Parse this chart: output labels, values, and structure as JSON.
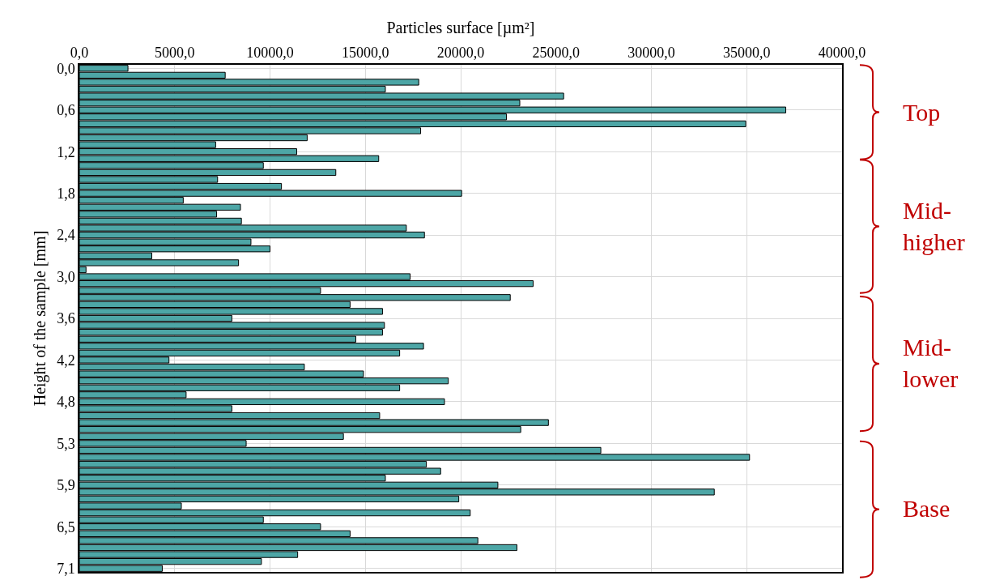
{
  "chart_data": {
    "type": "bar",
    "orientation": "horizontal",
    "xlabel": "Particles surface [µm²]",
    "ylabel": "Height of the sample [mm]",
    "categories": [
      "0,0",
      null,
      null,
      null,
      null,
      null,
      "0,6",
      null,
      null,
      null,
      null,
      null,
      "1,2",
      null,
      null,
      null,
      null,
      null,
      "1,8",
      null,
      null,
      null,
      null,
      null,
      "2,4",
      null,
      null,
      null,
      null,
      null,
      "3,0",
      null,
      null,
      null,
      null,
      null,
      "3,6",
      null,
      null,
      null,
      null,
      null,
      "4,2",
      null,
      null,
      null,
      null,
      null,
      "4,8",
      null,
      null,
      null,
      null,
      null,
      "5,3",
      null,
      null,
      null,
      null,
      null,
      "5,9",
      null,
      null,
      null,
      null,
      null,
      "6,5",
      null,
      null,
      null,
      null,
      null,
      "7,1"
    ],
    "values": [
      2550,
      7650,
      17800,
      16050,
      25400,
      23100,
      37050,
      22400,
      34950,
      17900,
      11950,
      7150,
      11400,
      15700,
      9650,
      13450,
      7250,
      10600,
      20050,
      5450,
      8450,
      7200,
      8500,
      17150,
      18100,
      9000,
      10000,
      3800,
      8350,
      350,
      17350,
      23800,
      12650,
      22600,
      14200,
      15900,
      8000,
      16000,
      15900,
      14500,
      18050,
      16800,
      4700,
      11800,
      14900,
      19350,
      16800,
      5600,
      19150,
      8000,
      15750,
      24600,
      23150,
      13850,
      8750,
      27350,
      35150,
      18200,
      18950,
      16050,
      21950,
      33300,
      19900,
      5350,
      20500,
      9650,
      12650,
      14200,
      20900,
      22950,
      11450,
      9550,
      4350
    ],
    "color": "#4da6a6",
    "xlim": [
      0,
      40000
    ],
    "xticks": [
      {
        "value": 0,
        "label": "0,0"
      },
      {
        "value": 5000,
        "label": "5000,0"
      },
      {
        "value": 10000,
        "label": "10000,0"
      },
      {
        "value": 15000,
        "label": "15000,0"
      },
      {
        "value": 20000,
        "label": "20000,0"
      },
      {
        "value": 25000,
        "label": "25000,0"
      },
      {
        "value": 30000,
        "label": "30000,0"
      },
      {
        "value": 35000,
        "label": "35000,0"
      },
      {
        "value": 40000,
        "label": "40000,0"
      }
    ],
    "grid": true,
    "annotations": [
      "Top",
      "Mid-higher",
      "Mid-lower",
      "Base"
    ]
  }
}
